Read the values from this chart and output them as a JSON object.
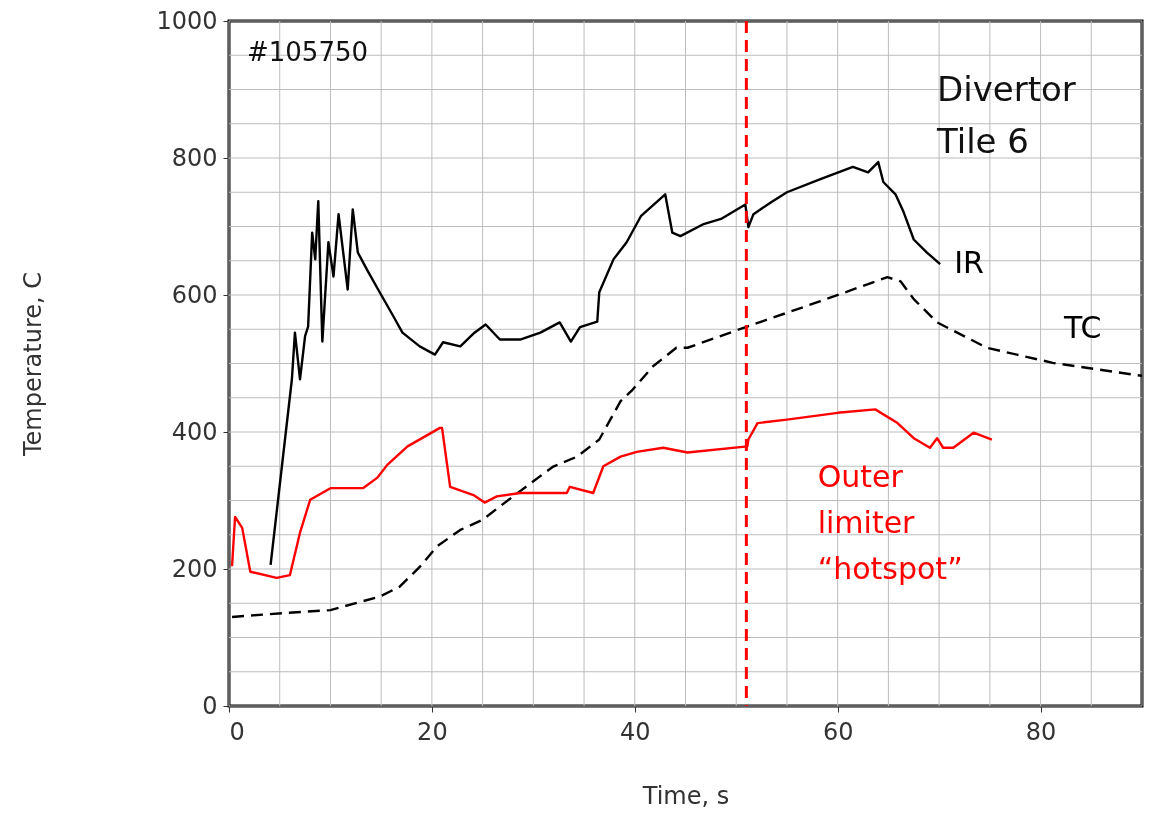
{
  "chart_data": {
    "type": "line",
    "xlabel": "Time, s",
    "ylabel": "Temperature, C",
    "xlim": [
      0,
      90
    ],
    "xticks": [
      0,
      20,
      40,
      60,
      80
    ],
    "ylim": [
      0,
      1000
    ],
    "yticks": [
      0,
      200,
      400,
      600,
      800,
      1000
    ],
    "grid": true,
    "annotations": [
      "#105750",
      "Divertor Tile 6"
    ],
    "ref_lines": [
      {
        "axis": "x",
        "value": 51,
        "color": "#ff0000",
        "line_style": "dashed"
      }
    ],
    "series": [
      {
        "name": "IR",
        "color": "#000000",
        "line_style": "solid",
        "x": [
          4.1,
          6.2,
          6.5,
          7.0,
          7.5,
          7.8,
          8.2,
          8.5,
          8.8,
          9.2,
          9.8,
          10.3,
          10.8,
          11.7,
          12.2,
          12.7,
          13.6,
          14.7,
          16.2,
          17.1,
          18.8,
          20.3,
          21.1,
          22.8,
          24.2,
          25.3,
          26.7,
          28.7,
          30.7,
          32.6,
          33.7,
          34.6,
          36.3,
          36.5,
          37.9,
          39.2,
          40.6,
          43.0,
          43.7,
          44.5,
          46.7,
          48.5,
          50.9,
          51.2,
          51.7,
          53.4,
          55.0,
          58.3,
          61.5,
          63.0,
          64.0,
          64.5,
          65.7,
          66.5,
          67.5,
          68.8,
          70.1
        ],
        "values": [
          206,
          477,
          545,
          477,
          540,
          554,
          691,
          652,
          737,
          532,
          677,
          627,
          718,
          608,
          725,
          662,
          637,
          608,
          569,
          545,
          525,
          513,
          531,
          525,
          545,
          557,
          535,
          535,
          545,
          560,
          532,
          553,
          561,
          604,
          652,
          677,
          715,
          747,
          691,
          686,
          703,
          711,
          732,
          699,
          718,
          735,
          750,
          769,
          787,
          779,
          794,
          765,
          747,
          721,
          681,
          662,
          645
        ]
      },
      {
        "name": "TC",
        "color": "#000000",
        "line_style": "dashed",
        "x": [
          0.3,
          5.7,
          10.0,
          14.9,
          16.8,
          18.8,
          20.5,
          22.8,
          25.0,
          28.0,
          31.9,
          34.3,
          36.5,
          38.6,
          39.8,
          41.8,
          44.1,
          45.2,
          51.1,
          58.3,
          64.9,
          66.2,
          67.5,
          69.8,
          74.7,
          81.2,
          90
        ],
        "values": [
          130,
          136,
          140,
          160,
          174,
          203,
          233,
          257,
          272,
          306,
          349,
          364,
          389,
          445,
          462,
          496,
          523,
          523,
          554,
          591,
          626,
          620,
          594,
          560,
          523,
          501,
          482
        ]
      },
      {
        "name": "Outer limiter “hotspot”",
        "color": "#ff0000",
        "line_style": "solid",
        "x": [
          0.3,
          0.6,
          1.3,
          2.1,
          4.7,
          6.0,
          7.0,
          8.0,
          10.0,
          13.2,
          14.6,
          15.6,
          17.6,
          20.8,
          21.0,
          21.8,
          24.1,
          25.2,
          26.4,
          28.7,
          33.3,
          33.6,
          35.9,
          36.9,
          38.6,
          40.2,
          42.8,
          45.2,
          51.1,
          51.2,
          52.1,
          55.0,
          60.0,
          63.7,
          65.9,
          67.5,
          69.1,
          69.8,
          70.4,
          71.4,
          73.4,
          75.2
        ],
        "values": [
          204,
          276,
          260,
          196,
          187,
          191,
          253,
          301,
          318,
          318,
          333,
          352,
          379,
          406,
          406,
          320,
          308,
          297,
          306,
          311,
          311,
          320,
          311,
          350,
          364,
          371,
          377,
          370,
          379,
          389,
          413,
          418,
          428,
          433,
          413,
          391,
          377,
          391,
          377,
          377,
          399,
          389
        ]
      }
    ]
  }
}
